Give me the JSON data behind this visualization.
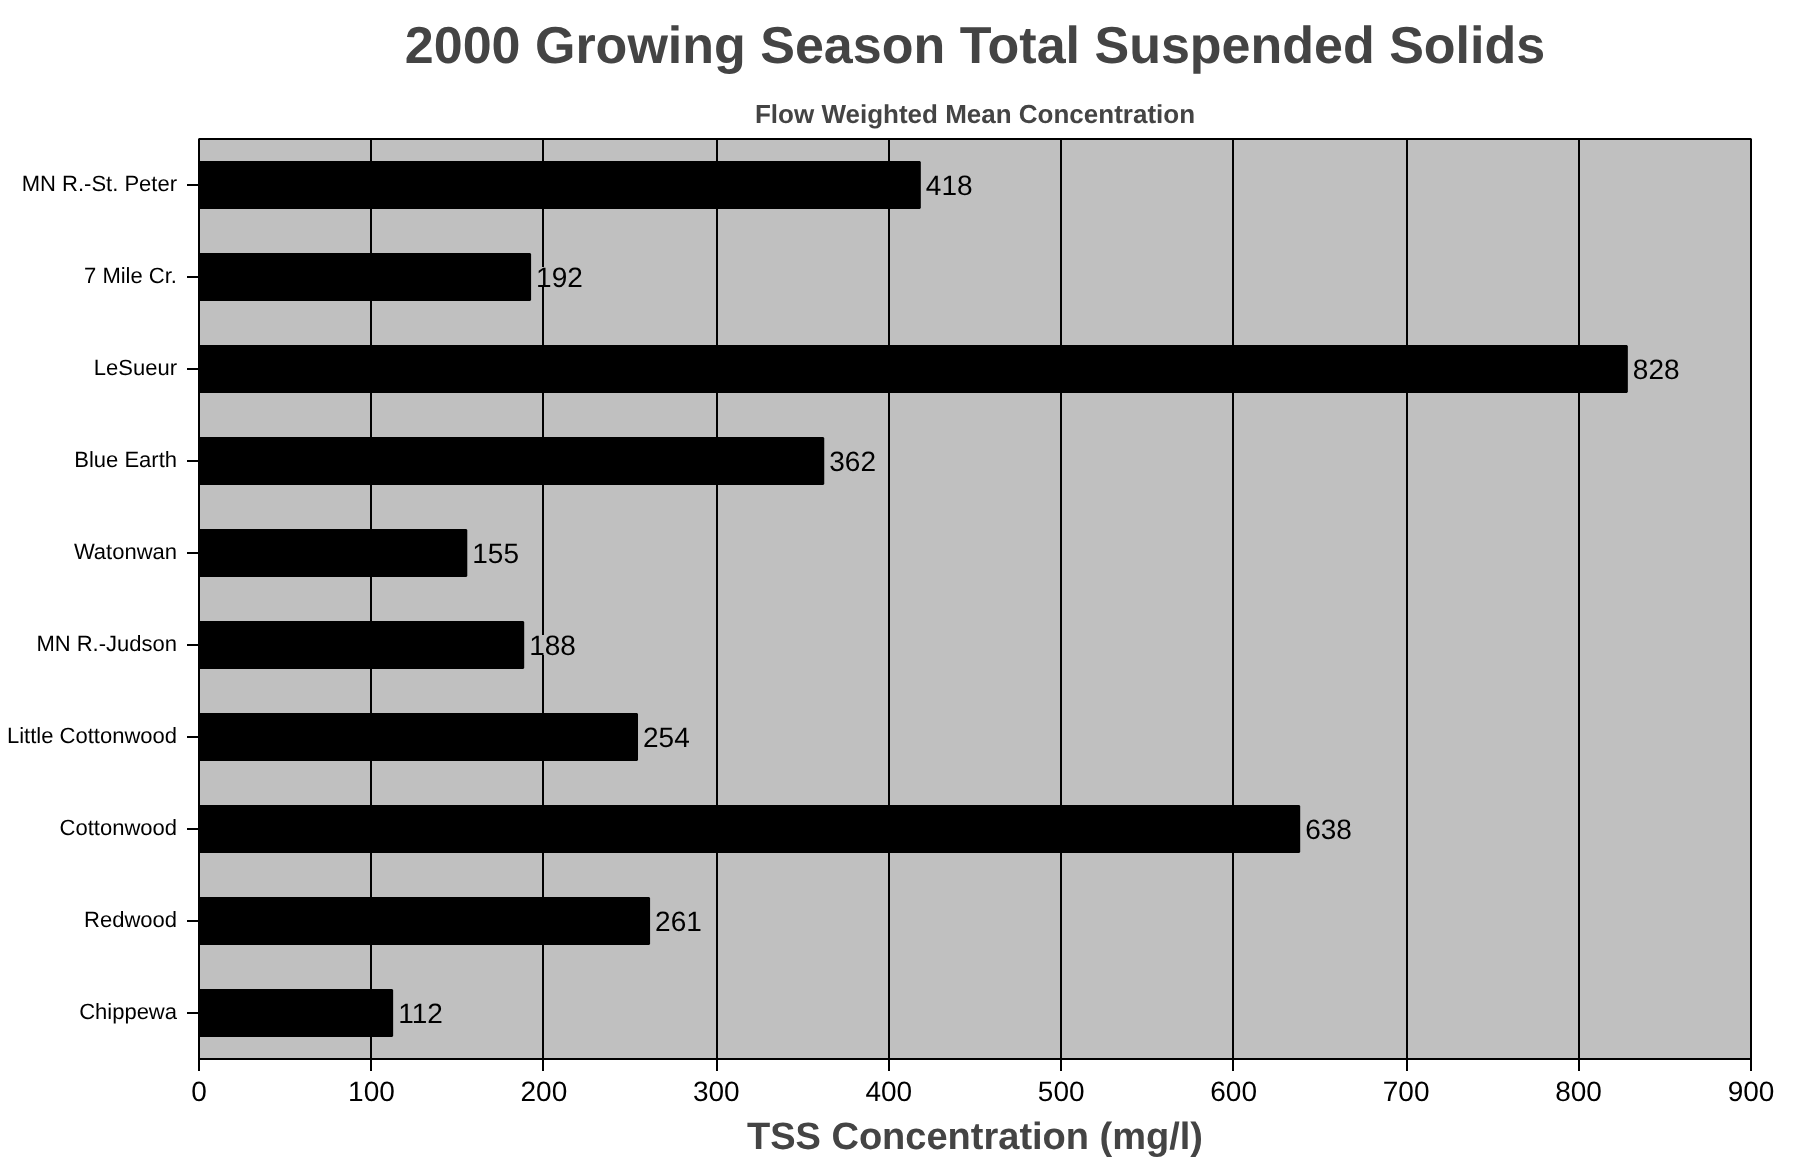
{
  "chart_data": {
    "type": "bar",
    "orientation": "horizontal",
    "title": "2000 Growing Season Total Suspended Solids",
    "subtitle": "Flow Weighted Mean Concentration",
    "xlabel": "TSS Concentration (mg/l)",
    "categories": [
      "MN R.-St. Peter",
      "7 Mile Cr.",
      "LeSueur",
      "Blue Earth",
      "Watonwan",
      "MN R.-Judson",
      "Little Cottonwood",
      "Cottonwood",
      "Redwood",
      "Chippewa"
    ],
    "values": [
      418,
      192,
      828,
      362,
      155,
      188,
      254,
      638,
      261,
      112
    ],
    "color": "#000000",
    "xlim": [
      0,
      900
    ],
    "xticks": [
      0,
      100,
      200,
      300,
      400,
      500,
      600,
      700,
      800,
      900
    ],
    "grid": "x",
    "data_labels": true
  }
}
